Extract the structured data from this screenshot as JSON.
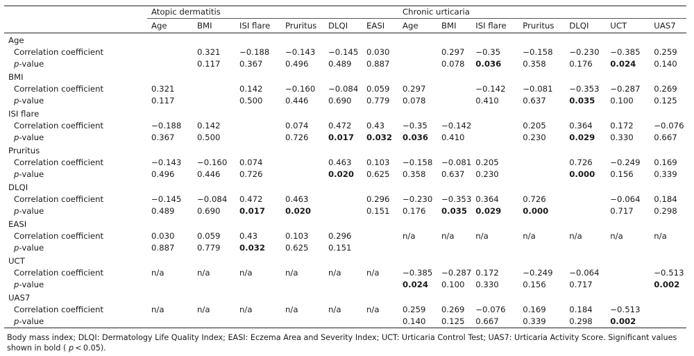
{
  "groups": [
    "Atopic dermatitis",
    "Chronic urticaria"
  ],
  "columns": [
    "Age",
    "BMI",
    "ISI flare",
    "Pruritus",
    "DLQI",
    "EASI",
    "Age",
    "BMI",
    "ISI flare",
    "Pruritus",
    "DLQI",
    "UCT",
    "UAS7"
  ],
  "row_labels": {
    "coef": "Correlation coefficient",
    "p_letter": "p",
    "p_rest": "-value"
  },
  "rows": [
    {
      "name": "Age",
      "coef": [
        "",
        "0.321",
        "−0.188",
        "−0.143",
        "−0.145",
        "0.030",
        "",
        "0.297",
        "−0.35",
        "−0.158",
        "−0.230",
        "−0.385",
        "0.259"
      ],
      "p": [
        "",
        "0.117",
        "0.367",
        "0.496",
        "0.489",
        "0.887",
        "",
        "0.078",
        "0.036",
        "0.358",
        "0.176",
        "0.024",
        "0.140"
      ],
      "bold": [
        8,
        11
      ]
    },
    {
      "name": "BMI",
      "coef": [
        "0.321",
        "",
        "0.142",
        "−0.160",
        "−0.084",
        "0.059",
        "0.297",
        "",
        "−0.142",
        "−0.081",
        "−0.353",
        "−0.287",
        "0.269"
      ],
      "p": [
        "0.117",
        "",
        "0.500",
        "0.446",
        "0.690",
        "0.779",
        "0.078",
        "",
        "0.410",
        "0.637",
        "0.035",
        "0.100",
        "0.125"
      ],
      "bold": [
        10
      ]
    },
    {
      "name": "ISI flare",
      "coef": [
        "−0.188",
        "0.142",
        "",
        "0.074",
        "0.472",
        "0.43",
        "−0.35",
        "−0.142",
        "",
        "0.205",
        "0.364",
        "0.172",
        "−0.076"
      ],
      "p": [
        "0.367",
        "0.500",
        "",
        "0.726",
        "0.017",
        "0.032",
        "0.036",
        "0.410",
        "",
        "0.230",
        "0.029",
        "0.330",
        "0.667"
      ],
      "bold": [
        4,
        5,
        6,
        10
      ]
    },
    {
      "name": "Pruritus",
      "coef": [
        "−0.143",
        "−0.160",
        "0.074",
        "",
        "0.463",
        "0.103",
        "−0.158",
        "−0.081",
        "0.205",
        "",
        "0.726",
        "−0.249",
        "0.169"
      ],
      "p": [
        "0.496",
        "0.446",
        "0.726",
        "",
        "0.020",
        "0.625",
        "0.358",
        "0.637",
        "0.230",
        "",
        "0.000",
        "0.156",
        "0.339"
      ],
      "bold": [
        4,
        10
      ]
    },
    {
      "name": "DLQI",
      "coef": [
        "−0.145",
        "−0.084",
        "0.472",
        "0.463",
        "",
        "0.296",
        "−0.230",
        "−0.353",
        "0.364",
        "0.726",
        "",
        "−0.064",
        "0.184"
      ],
      "p": [
        "0.489",
        "0.690",
        "0.017",
        "0.020",
        "",
        "0.151",
        "0.176",
        "0.035",
        "0.029",
        "0.000",
        "",
        "0.717",
        "0.298"
      ],
      "bold": [
        2,
        3,
        7,
        8,
        9
      ]
    },
    {
      "name": "EASI",
      "coef": [
        "0.030",
        "0.059",
        "0.43",
        "0.103",
        "0.296",
        "",
        "n/a",
        "n/a",
        "n/a",
        "n/a",
        "n/a",
        "n/a",
        "n/a"
      ],
      "p": [
        "0.887",
        "0.779",
        "0.032",
        "0.625",
        "0.151",
        "",
        "",
        "",
        "",
        "",
        "",
        "",
        ""
      ],
      "bold": [
        2
      ]
    },
    {
      "name": "UCT",
      "coef": [
        "n/a",
        "n/a",
        "n/a",
        "n/a",
        "n/a",
        "n/a",
        "−0.385",
        "−0.287",
        "0.172",
        "−0.249",
        "−0.064",
        "",
        "−0.513"
      ],
      "p": [
        "",
        "",
        "",
        "",
        "",
        "",
        "0.024",
        "0.100",
        "0.330",
        "0.156",
        "0.717",
        "",
        "0.002"
      ],
      "bold": [
        6,
        12
      ]
    },
    {
      "name": "UAS7",
      "coef": [
        "n/a",
        "n/a",
        "n/a",
        "n/a",
        "n/a",
        "n/a",
        "0.259",
        "0.269",
        "−0.076",
        "0.169",
        "0.184",
        "−0.513",
        ""
      ],
      "p": [
        "",
        "",
        "",
        "",
        "",
        "",
        "0.140",
        "0.125",
        "0.667",
        "0.339",
        "0.298",
        "0.002",
        ""
      ],
      "bold": [
        11
      ]
    }
  ],
  "footnote": {
    "text": "Body mass index; DLQI: Dermatology Life Quality Index; EASI: Eczema Area and Severity Index; UCT: Urticaria Control Test; UAS7: Urticaria Activity Score. Significant values shown in bold (",
    "p_letter": "p",
    "threshold": " < 0.05)."
  }
}
